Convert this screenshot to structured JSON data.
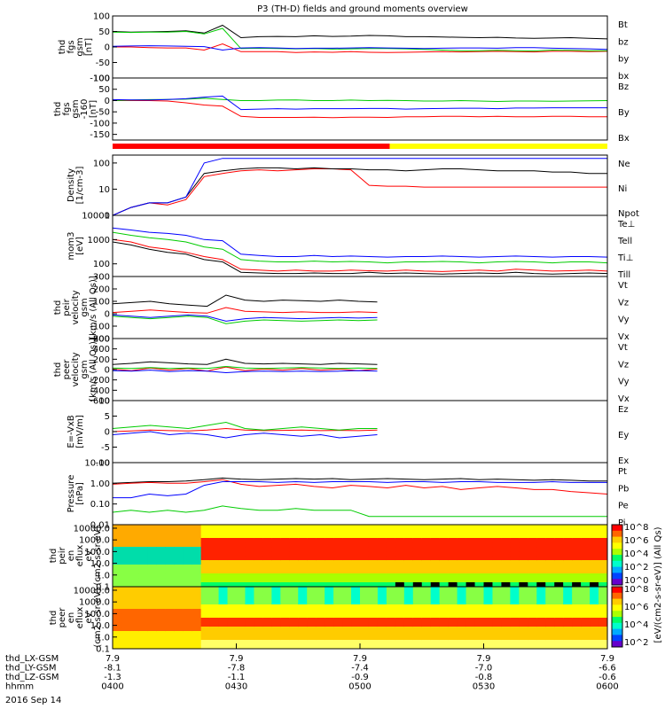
{
  "title": "P3 (TH-D) fields and ground moments overview",
  "date_label": "2016 Sep 14",
  "x_axis": {
    "ticks": [
      "0400",
      "0430",
      "0500",
      "0530",
      "0600"
    ],
    "rows": [
      {
        "label": "thd_LX-GSM",
        "values": [
          "7.9",
          "7.9",
          "7.9",
          "7.9",
          "7.9"
        ]
      },
      {
        "label": "thd_LY-GSM",
        "values": [
          "-8.1",
          "-7.8",
          "-7.4",
          "-7.0",
          "-6.6"
        ]
      },
      {
        "label": "thd_LZ-GSM",
        "values": [
          "-1.3",
          "-1.1",
          "-0.9",
          "-0.8",
          "-0.6"
        ]
      },
      {
        "label": "hhmm",
        "values": [
          "0400",
          "0430",
          "0500",
          "0530",
          "0600"
        ]
      }
    ]
  },
  "colorbar": {
    "label": "[eV/(cm2-s-sr-eV)] (All Qs)",
    "ticks_top": [
      "10^8",
      "10^6",
      "10^4",
      "10^2",
      "10^0"
    ],
    "ticks_bottom": [
      "10^8",
      "10^6",
      "10^4",
      "10^2"
    ]
  },
  "status_bar": {
    "colors": [
      "#ff0000",
      "#ffff00"
    ],
    "split_fraction": 0.56
  },
  "colors": {
    "black": "#000000",
    "red": "#ff0000",
    "green": "#00cc00",
    "blue": "#0000ff",
    "yellow": "#ffff00"
  },
  "chart_data": [
    {
      "type": "line",
      "name": "fgs",
      "ylabel": "thd fgs gsm [nT]",
      "ylim": [
        -100,
        100
      ],
      "yticks": [
        "100",
        "50",
        "0",
        "-50",
        "-100"
      ],
      "series": [
        {
          "name": "Bt",
          "color": "#000000",
          "values": [
            50,
            48,
            49,
            50,
            52,
            45,
            70,
            30,
            33,
            34,
            33,
            36,
            34,
            35,
            37,
            36,
            33,
            33,
            32,
            31,
            30,
            31,
            29,
            28,
            29,
            30,
            28,
            26
          ]
        },
        {
          "name": "bz",
          "color": "#ff0000",
          "values": [
            0,
            0,
            -2,
            -3,
            -3,
            -10,
            10,
            -15,
            -15,
            -15,
            -18,
            -16,
            -17,
            -15,
            -17,
            -18,
            -17,
            -16,
            -15,
            -16,
            -15,
            -14,
            -15,
            -16,
            -14,
            -14,
            -15,
            -14
          ]
        },
        {
          "name": "by",
          "color": "#00cc00",
          "values": [
            48,
            47,
            48,
            48,
            50,
            42,
            60,
            -5,
            -4,
            -5,
            -6,
            -5,
            -7,
            -6,
            -5,
            -5,
            -6,
            -8,
            -10,
            -12,
            -12,
            -11,
            -12,
            -13,
            -10,
            -11,
            -12,
            -12
          ]
        },
        {
          "name": "bx",
          "color": "#0000ff",
          "values": [
            2,
            3,
            4,
            3,
            2,
            1,
            -10,
            -3,
            -2,
            -3,
            -5,
            -4,
            -4,
            -3,
            -2,
            -3,
            -4,
            -5,
            -4,
            -3,
            -3,
            -4,
            -2,
            -2,
            -4,
            -5,
            -6,
            -8
          ]
        }
      ]
    },
    {
      "type": "line",
      "name": "fgs-160",
      "ylabel": "thd fgs gsm -160 [nT]",
      "ylim": [
        -175,
        100
      ],
      "yticks": [
        "100",
        "50",
        "0",
        "-50",
        "-100",
        "-150"
      ],
      "series": [
        {
          "name": "Bz",
          "color": "#ff0000",
          "values": [
            0,
            0,
            0,
            -2,
            -10,
            -20,
            -25,
            -70,
            -75,
            -75,
            -75,
            -74,
            -76,
            -74,
            -74,
            -75,
            -72,
            -72,
            -70,
            -70,
            -72,
            -70,
            -72,
            -72,
            -70,
            -70,
            -72,
            -72
          ]
        },
        {
          "name": "By",
          "color": "#00cc00",
          "values": [
            0,
            2,
            4,
            5,
            6,
            10,
            5,
            0,
            0,
            2,
            3,
            0,
            0,
            2,
            0,
            1,
            0,
            -2,
            -2,
            0,
            -2,
            -4,
            -2,
            -2,
            -3,
            -2,
            -1,
            0
          ]
        },
        {
          "name": "Bx",
          "color": "#0000ff",
          "values": [
            4,
            3,
            2,
            5,
            8,
            15,
            20,
            -40,
            -38,
            -36,
            -38,
            -36,
            -36,
            -36,
            -35,
            -35,
            -38,
            -36,
            -35,
            -34,
            -34,
            -36,
            -33,
            -33,
            -32,
            -32,
            -32,
            -32
          ]
        }
      ]
    },
    {
      "type": "line",
      "name": "density",
      "ylabel": "Density [1/cm-3]",
      "log": true,
      "ylim": [
        1,
        200
      ],
      "yticks": [
        "100",
        "10",
        "1"
      ],
      "series": [
        {
          "name": "Ne",
          "color": "#ff0000",
          "values": [
            1,
            2,
            3,
            2.5,
            4,
            30,
            40,
            50,
            55,
            50,
            55,
            60,
            60,
            55,
            14,
            13,
            13,
            12,
            12,
            12,
            12,
            12,
            12,
            12,
            12,
            12,
            12,
            12
          ]
        },
        {
          "name": "Ni",
          "color": "#000000",
          "values": [
            1,
            2,
            3,
            3,
            5,
            40,
            50,
            60,
            65,
            65,
            60,
            65,
            60,
            60,
            55,
            55,
            50,
            55,
            60,
            60,
            55,
            50,
            50,
            50,
            45,
            45,
            40,
            40
          ]
        },
        {
          "name": "Npot",
          "color": "#0000ff",
          "values": [
            1,
            2,
            3,
            3,
            5,
            100,
            150,
            150,
            150,
            150,
            150,
            150,
            150,
            150,
            150,
            150,
            150,
            150,
            150,
            150,
            150,
            150,
            150,
            150,
            150,
            150,
            150,
            150
          ]
        }
      ],
      "series_labels_extra": []
    },
    {
      "type": "line",
      "name": "temperature",
      "ylabel": "mom3 [eV]",
      "log": true,
      "ylim": [
        30,
        10000
      ],
      "yticks": [
        "10000",
        "1000",
        "100"
      ],
      "series": [
        {
          "name": "Te⊥",
          "color": "#ff0000",
          "values": [
            1000,
            800,
            500,
            400,
            300,
            200,
            150,
            60,
            55,
            50,
            55,
            50,
            50,
            55,
            52,
            50,
            55,
            50,
            48,
            52,
            55,
            50,
            60,
            55,
            50,
            52,
            55,
            50
          ]
        },
        {
          "name": "Tell",
          "color": "#000000",
          "values": [
            800,
            600,
            400,
            300,
            250,
            150,
            120,
            45,
            42,
            40,
            40,
            42,
            40,
            40,
            45,
            40,
            42,
            40,
            38,
            40,
            42,
            40,
            45,
            40,
            38,
            40,
            42,
            40
          ]
        },
        {
          "name": "Ti⊥",
          "color": "#0000ff",
          "values": [
            3000,
            2500,
            2000,
            1800,
            1500,
            1000,
            900,
            250,
            220,
            200,
            200,
            220,
            200,
            210,
            200,
            190,
            200,
            200,
            210,
            200,
            190,
            200,
            210,
            200,
            190,
            200,
            200,
            190
          ]
        },
        {
          "name": "Till",
          "color": "#00cc00",
          "values": [
            2000,
            1500,
            1200,
            1000,
            800,
            500,
            400,
            150,
            130,
            120,
            120,
            130,
            120,
            125,
            120,
            110,
            120,
            120,
            125,
            120,
            110,
            120,
            125,
            120,
            110,
            120,
            120,
            110
          ]
        }
      ]
    },
    {
      "type": "line",
      "name": "peir-velocity",
      "ylabel": "thd peir velocity gsm [km/s (All Qs)]",
      "ylim": [
        -200,
        300
      ],
      "yticks": [
        "300",
        "200",
        "100",
        "0",
        "-100",
        "-200"
      ],
      "series": [
        {
          "name": "Vt",
          "color": "#000000",
          "values": [
            80,
            90,
            100,
            80,
            70,
            60,
            150,
            110,
            100,
            110,
            105,
            100,
            110,
            100,
            95
          ]
        },
        {
          "name": "Vz",
          "color": "#ff0000",
          "values": [
            10,
            20,
            30,
            20,
            10,
            5,
            50,
            20,
            15,
            10,
            15,
            10,
            10,
            15,
            10
          ]
        },
        {
          "name": "Vy",
          "color": "#00cc00",
          "values": [
            -20,
            -30,
            -40,
            -30,
            -20,
            -30,
            -80,
            -60,
            -50,
            -55,
            -60,
            -55,
            -50,
            -55,
            -50
          ]
        },
        {
          "name": "Vx",
          "color": "#0000ff",
          "values": [
            -10,
            -20,
            -30,
            -20,
            -10,
            -20,
            -60,
            -40,
            -30,
            -35,
            -40,
            -35,
            -30,
            -35,
            -30
          ]
        }
      ]
    },
    {
      "type": "line",
      "name": "peer-velocity",
      "ylabel": "thd peer velocity gsm [km/s (All Qs)]",
      "ylim": [
        -600,
        600
      ],
      "yticks": [
        "600",
        "400",
        "200",
        "0",
        "-200",
        "-400",
        "-600"
      ],
      "series": [
        {
          "name": "Vt",
          "color": "#000000",
          "values": [
            100,
            120,
            150,
            130,
            110,
            100,
            200,
            120,
            110,
            120,
            110,
            100,
            120,
            110,
            100
          ]
        },
        {
          "name": "Vz",
          "color": "#ff0000",
          "values": [
            10,
            -20,
            30,
            -10,
            20,
            -30,
            50,
            -20,
            10,
            -10,
            20,
            -10,
            10,
            -20,
            10
          ]
        },
        {
          "name": "Vy",
          "color": "#00cc00",
          "values": [
            30,
            20,
            40,
            20,
            30,
            20,
            60,
            30,
            20,
            30,
            40,
            30,
            20,
            30,
            20
          ]
        },
        {
          "name": "Vx",
          "color": "#0000ff",
          "values": [
            -20,
            -30,
            -10,
            -40,
            -20,
            -30,
            -60,
            -40,
            -30,
            -40,
            -30,
            -40,
            -30,
            -20,
            -30
          ]
        }
      ]
    },
    {
      "type": "line",
      "name": "efield",
      "ylabel": "E=-VxB [mV/m]",
      "ylim": [
        -10,
        10
      ],
      "yticks": [
        "10",
        "5",
        "0",
        "-5",
        "-10"
      ],
      "series": [
        {
          "name": "Ez",
          "color": "#ff0000",
          "values": [
            0,
            0.2,
            0.5,
            0.3,
            0.2,
            0.5,
            1,
            0.5,
            0.3,
            0.4,
            0.5,
            0.3,
            0.4,
            0.3,
            0.5
          ]
        },
        {
          "name": "Ey",
          "color": "#00cc00",
          "values": [
            1,
            1.5,
            2,
            1.5,
            1,
            2,
            3,
            1,
            0.5,
            1,
            1.5,
            1,
            0.5,
            1,
            1
          ]
        },
        {
          "name": "Ex",
          "color": "#0000ff",
          "values": [
            -1,
            -0.5,
            0,
            -1,
            -0.5,
            -1,
            -2,
            -1,
            -0.5,
            -1,
            -1.5,
            -1,
            -2,
            -1.5,
            -1
          ]
        }
      ]
    },
    {
      "type": "line",
      "name": "pressure",
      "ylabel": "Pressure [nPa]",
      "log": true,
      "ylim": [
        0.01,
        10
      ],
      "yticks": [
        "10.00",
        "1.00",
        "0.10",
        "0.01"
      ],
      "series": [
        {
          "name": "Pt",
          "color": "#000000",
          "values": [
            1,
            1.1,
            1.2,
            1.2,
            1.3,
            1.5,
            1.8,
            1.6,
            1.5,
            1.6,
            1.7,
            1.6,
            1.7,
            1.5,
            1.6,
            1.7,
            1.6,
            1.5,
            1.6,
            1.7,
            1.5,
            1.6,
            1.5,
            1.4,
            1.5,
            1.4,
            1.3,
            1.3
          ]
        },
        {
          "name": "Pb",
          "color": "#ff0000",
          "values": [
            0.9,
            1,
            1.1,
            1,
            1,
            1.2,
            1.5,
            0.9,
            0.7,
            0.8,
            0.9,
            0.7,
            0.6,
            0.8,
            0.7,
            0.6,
            0.8,
            0.6,
            0.7,
            0.5,
            0.6,
            0.7,
            0.6,
            0.5,
            0.5,
            0.4,
            0.35,
            0.3
          ]
        },
        {
          "name": "Pe",
          "color": "#00cc00",
          "values": [
            0.04,
            0.05,
            0.04,
            0.05,
            0.04,
            0.05,
            0.08,
            0.06,
            0.05,
            0.05,
            0.06,
            0.05,
            0.05,
            0.05,
            0.025,
            0.025,
            0.025,
            0.025,
            0.025,
            0.025,
            0.025,
            0.025,
            0.025,
            0.025,
            0.025,
            0.025,
            0.025,
            0.025
          ]
        },
        {
          "name": "Pi",
          "color": "#0000ff",
          "values": [
            0.2,
            0.2,
            0.3,
            0.25,
            0.3,
            0.8,
            1.2,
            1.2,
            1.2,
            1.1,
            1.2,
            1.1,
            1.2,
            1.2,
            1.2,
            1.1,
            1.2,
            1.2,
            1.1,
            1.2,
            1.2,
            1.1,
            1.1,
            1.1,
            1.2,
            1.1,
            1.1,
            1.1
          ]
        }
      ]
    },
    {
      "type": "heatmap",
      "name": "peir-energy",
      "ylabel": "thd peir en eflux eV",
      "log": true,
      "ylim": [
        0.1,
        20000
      ],
      "yticks": [
        "10000.0",
        "1000.0",
        "100.0",
        "10.0",
        "1.0",
        "0.1"
      ]
    },
    {
      "type": "heatmap",
      "name": "peer-energy",
      "ylabel": "thd peer en eflux eV",
      "log": true,
      "ylim": [
        0.1,
        20000
      ],
      "yticks": [
        "10000.0",
        "1000.0",
        "100.0",
        "10.0",
        "1.0",
        "0.1"
      ]
    }
  ],
  "panel_texts": [
    {
      "l1": "thd",
      "l2": "fgs",
      "l3": "gsm",
      "l4": "[nT]"
    },
    {
      "l1": "thd",
      "l2": "fgs",
      "l3": "gsm",
      "l4": "-160",
      "l5": "[nT]"
    },
    {
      "l1": "Density",
      "l2": "[1/cm-3]"
    },
    {
      "l1": "mom3",
      "l2": "[eV]"
    },
    {
      "l1": "thd",
      "l2": "peir",
      "l3": "velocity",
      "l4": "gsm",
      "l5": "[km/s (All Qs)]"
    },
    {
      "l1": "thd",
      "l2": "peer",
      "l3": "velocity",
      "l4": "gsm",
      "l5": "[km/s (All Qs)]"
    },
    {
      "l1": "E=-VxB",
      "l2": "[mV/m]"
    },
    {
      "l1": "Pressure",
      "l2": "[nPa]"
    },
    {
      "l1": "thd",
      "l2": "peir",
      "l3": "en",
      "l4": "eflux",
      "l5": "eV",
      "l6": "(cm2-s-sr-eV)"
    },
    {
      "l1": "thd",
      "l2": "peer",
      "l3": "en",
      "l4": "eflux",
      "l5": "eV",
      "l6": "(cm2-s-sr-eV)"
    }
  ]
}
